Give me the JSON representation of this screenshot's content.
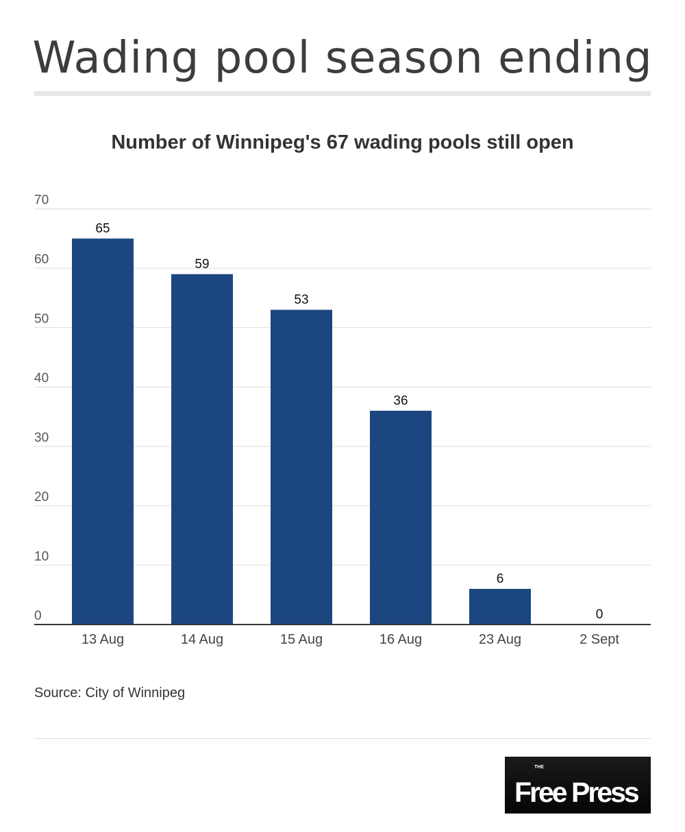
{
  "title": "Wading pool season ending",
  "source": "Source: City of Winnipeg",
  "logo": {
    "the": "THE",
    "name": "Free Press"
  },
  "colors": {
    "bar": "#1c4680",
    "grid": "#dddddd",
    "axis": "#333333"
  },
  "chart_data": {
    "type": "bar",
    "title": "Number of Winnipeg's 67 wading pools still open",
    "categories": [
      "13 Aug",
      "14 Aug",
      "15 Aug",
      "16 Aug",
      "23 Aug",
      "2 Sept"
    ],
    "values": [
      65,
      59,
      53,
      36,
      6,
      0
    ],
    "yticks": [
      0,
      10,
      20,
      30,
      40,
      50,
      60,
      70
    ],
    "ylim": [
      0,
      70
    ],
    "xlabel": "",
    "ylabel": "",
    "grid": true,
    "legend": "none"
  }
}
